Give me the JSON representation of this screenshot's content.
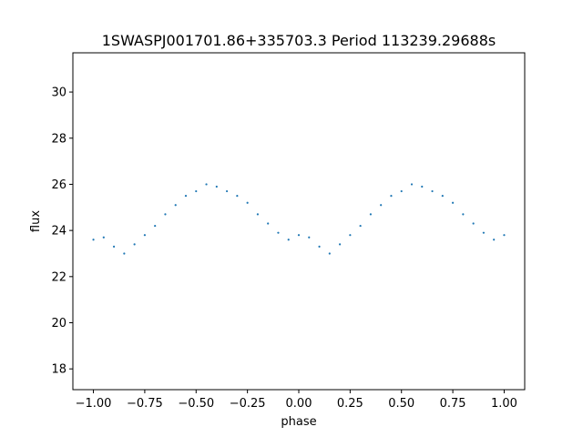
{
  "chart_data": {
    "type": "scatter",
    "title": "1SWASPJ001701.86+335703.3 Period 113239.29688s",
    "xlabel": "phase",
    "ylabel": "flux",
    "xlim": [
      -1.1,
      1.1
    ],
    "ylim": [
      17.1,
      31.7
    ],
    "xticks": [
      -1.0,
      -0.75,
      -0.5,
      -0.25,
      0.0,
      0.25,
      0.5,
      0.75,
      1.0
    ],
    "xtick_labels": [
      "−1.00",
      "−0.75",
      "−0.50",
      "−0.25",
      "0.00",
      "0.25",
      "0.50",
      "0.75",
      "1.00"
    ],
    "yticks": [
      18,
      20,
      22,
      24,
      26,
      28,
      30
    ],
    "ytick_labels": [
      "18",
      "20",
      "22",
      "24",
      "26",
      "28",
      "30"
    ],
    "grid": false,
    "marker_color": "#1f77b4",
    "series": [
      {
        "x": [
          -1.0,
          -0.95,
          -0.9,
          -0.85,
          -0.8,
          -0.75,
          -0.7,
          -0.65,
          -0.6,
          -0.55,
          -0.5,
          -0.45,
          -0.4,
          -0.35,
          -0.3,
          -0.25,
          -0.2,
          -0.15,
          -0.1,
          -0.05,
          0.0,
          0.05,
          0.1,
          0.15,
          0.2,
          0.25,
          0.3,
          0.35,
          0.4,
          0.45,
          0.5,
          0.55,
          0.6,
          0.65,
          0.7,
          0.75,
          0.8,
          0.85,
          0.9,
          0.95,
          1.0
        ],
        "y": [
          23.6,
          23.7,
          23.3,
          23.0,
          23.4,
          23.8,
          24.2,
          24.7,
          25.1,
          25.5,
          25.7,
          26.0,
          25.9,
          25.7,
          25.5,
          25.2,
          24.7,
          24.3,
          23.9,
          23.6,
          23.8,
          23.7,
          23.3,
          23.0,
          23.4,
          23.8,
          24.2,
          24.7,
          25.1,
          25.5,
          25.7,
          26.0,
          25.9,
          25.7,
          25.5,
          25.2,
          24.7,
          24.3,
          23.9,
          23.6,
          23.8
        ]
      }
    ]
  }
}
